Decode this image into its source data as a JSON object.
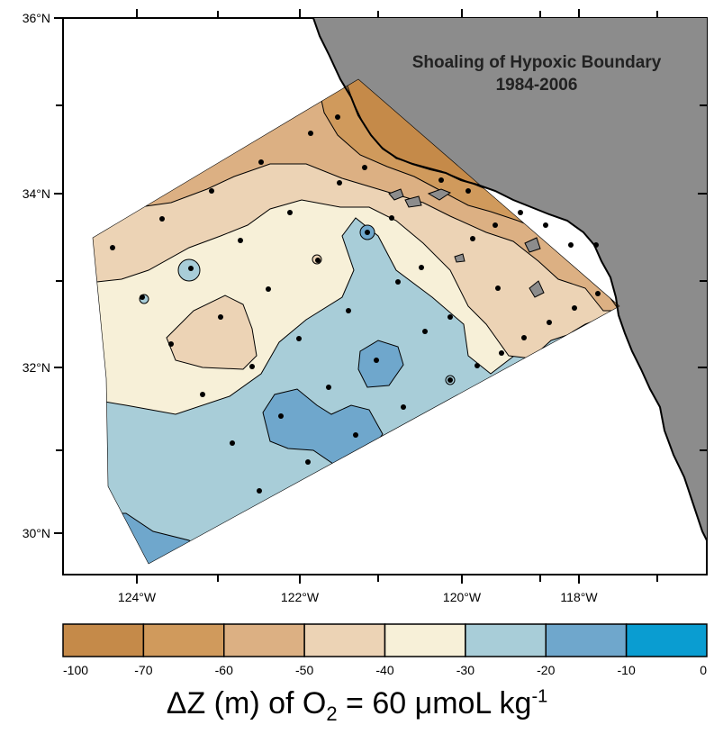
{
  "map": {
    "title_line1": "Shoaling of Hypoxic Boundary",
    "title_line2": "1984-2006",
    "lat_labels": [
      "36°N",
      "34°N",
      "32°N",
      "30°N"
    ],
    "lon_labels": [
      "124°W",
      "122°W",
      "120°W",
      "118°W"
    ],
    "colors": {
      "land": "#8c8c8c",
      "ocean": "#ffffff"
    }
  },
  "legend": {
    "ticks": [
      "-100",
      "-70",
      "-60",
      "-50",
      "-40",
      "-30",
      "-20",
      "-10",
      "0"
    ],
    "colors": [
      "#c58a49",
      "#d09a5c",
      "#dcb083",
      "#ecd3b5",
      "#f7f0d8",
      "#a8cdd8",
      "#6fa7cc",
      "#0a9dd1"
    ],
    "title_prefix": "ΔZ (m) of O",
    "title_sub": "2",
    "title_mid": " = 60 μmoL kg",
    "title_sup": "-1"
  }
}
